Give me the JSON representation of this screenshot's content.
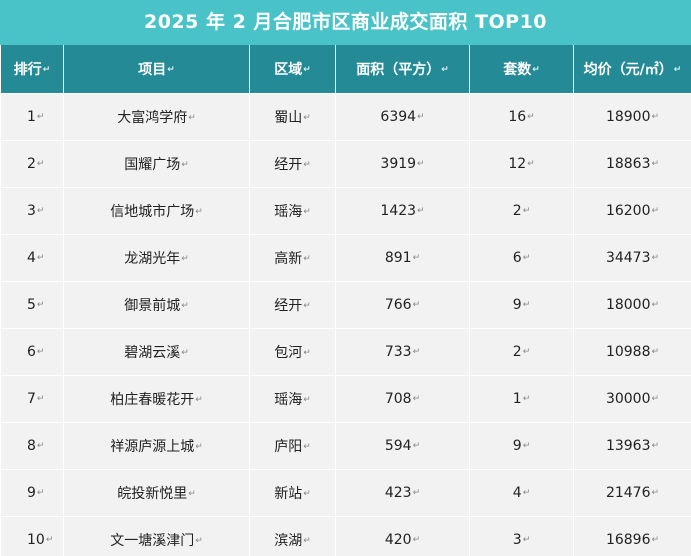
{
  "title": "2025 年 2 月合肥市区商业成交面积 TOP10",
  "headers": [
    "排行",
    "项目",
    "区域",
    "面积（平方）",
    "套数",
    "均价（元/㎡）"
  ],
  "rows": [
    [
      "1",
      "大富鸿学府",
      "蜀山",
      "6394",
      "16",
      "18900"
    ],
    [
      "2",
      "国耀广场",
      "经开",
      "3919",
      "12",
      "18863"
    ],
    [
      "3",
      "信地城市广场",
      "瑶海",
      "1423",
      "2",
      "16200"
    ],
    [
      "4",
      "龙湖光年",
      "高新",
      "891",
      "6",
      "34473"
    ],
    [
      "5",
      "御景前城",
      "经开",
      "766",
      "9",
      "18000"
    ],
    [
      "6",
      "碧湖云溪",
      "包河",
      "733",
      "2",
      "10988"
    ],
    [
      "7",
      "柏庄春暖花开",
      "瑶海",
      "708",
      "1",
      "30000"
    ],
    [
      "8",
      "祥源庐源上城",
      "庐阳",
      "594",
      "9",
      "13963"
    ],
    [
      "9",
      "皖投新悦里",
      "新站",
      "423",
      "4",
      "21476"
    ],
    [
      "10",
      "文一塘溪津门",
      "滨湖",
      "420",
      "3",
      "16896"
    ]
  ],
  "colors": {
    "title_bg": "#4ac3c8",
    "header_bg": "#248a95",
    "row_bg": "#f2f2f2"
  }
}
